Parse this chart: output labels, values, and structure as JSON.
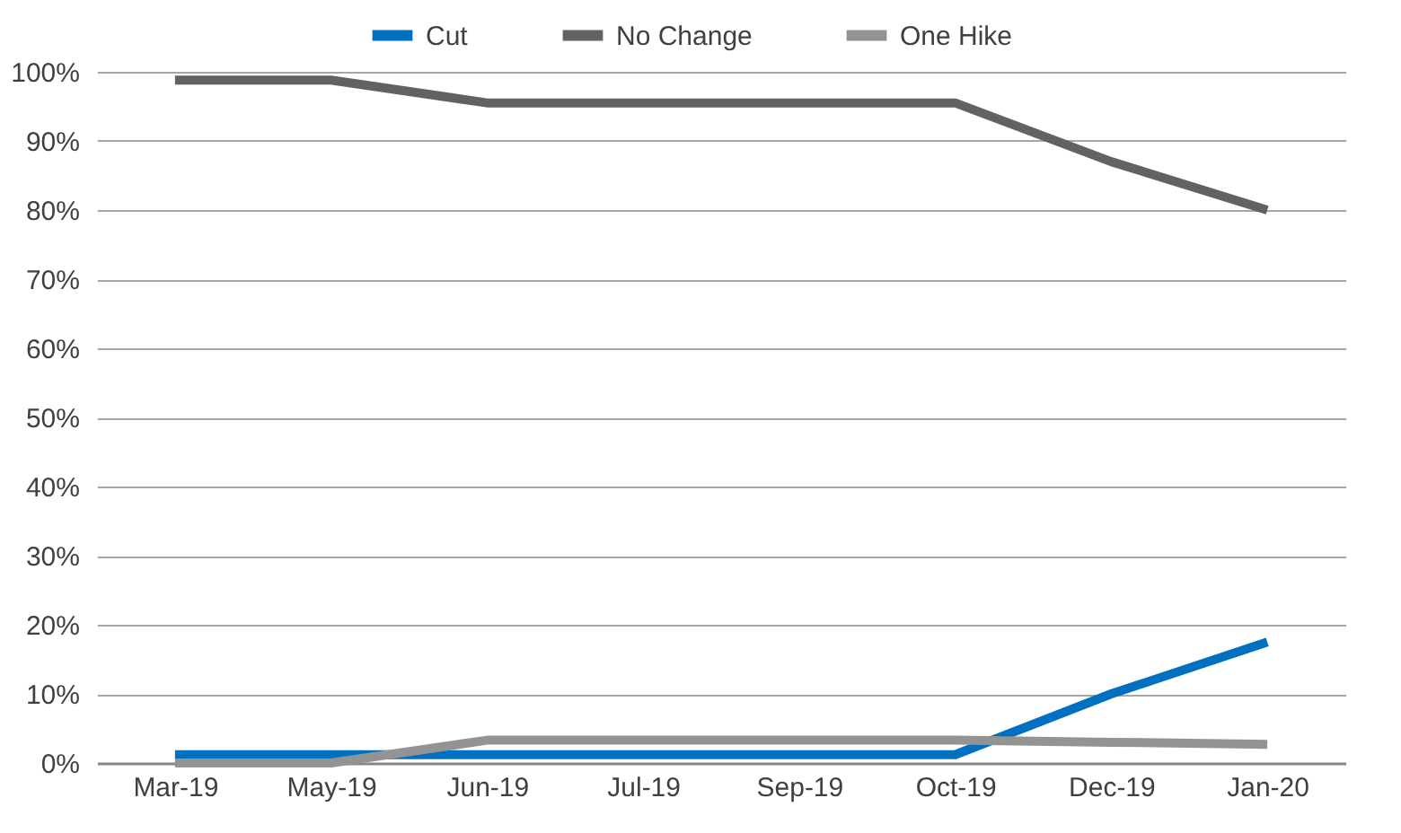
{
  "chart_data": {
    "type": "line",
    "categories": [
      "Mar-19",
      "May-19",
      "Jun-19",
      "Jul-19",
      "Sep-19",
      "Oct-19",
      "Dec-19",
      "Jan-20"
    ],
    "series": [
      {
        "name": "Cut",
        "color": "#0070c0",
        "values": [
          1.2,
          1.2,
          1.2,
          1.2,
          1.2,
          1.2,
          10,
          17.5
        ]
      },
      {
        "name": "No Change",
        "color": "#626262",
        "values": [
          98.8,
          98.8,
          95.5,
          95.5,
          95.5,
          95.5,
          87,
          80
        ]
      },
      {
        "name": "One Hike",
        "color": "#939393",
        "values": [
          0,
          0,
          3.3,
          3.3,
          3.3,
          3.3,
          3.0,
          2.7
        ]
      }
    ],
    "ylim": [
      0,
      100
    ],
    "yticks": [
      {
        "value": 0,
        "label": "0%"
      },
      {
        "value": 10,
        "label": "10%"
      },
      {
        "value": 20,
        "label": "20%"
      },
      {
        "value": 30,
        "label": "30%"
      },
      {
        "value": 40,
        "label": "40%"
      },
      {
        "value": 50,
        "label": "50%"
      },
      {
        "value": 60,
        "label": "60%"
      },
      {
        "value": 70,
        "label": "70%"
      },
      {
        "value": 80,
        "label": "80%"
      },
      {
        "value": 90,
        "label": "90%"
      },
      {
        "value": 100,
        "label": "100%"
      }
    ],
    "grid": "y",
    "legend": "top",
    "marker": "none",
    "line_style": "solid"
  }
}
